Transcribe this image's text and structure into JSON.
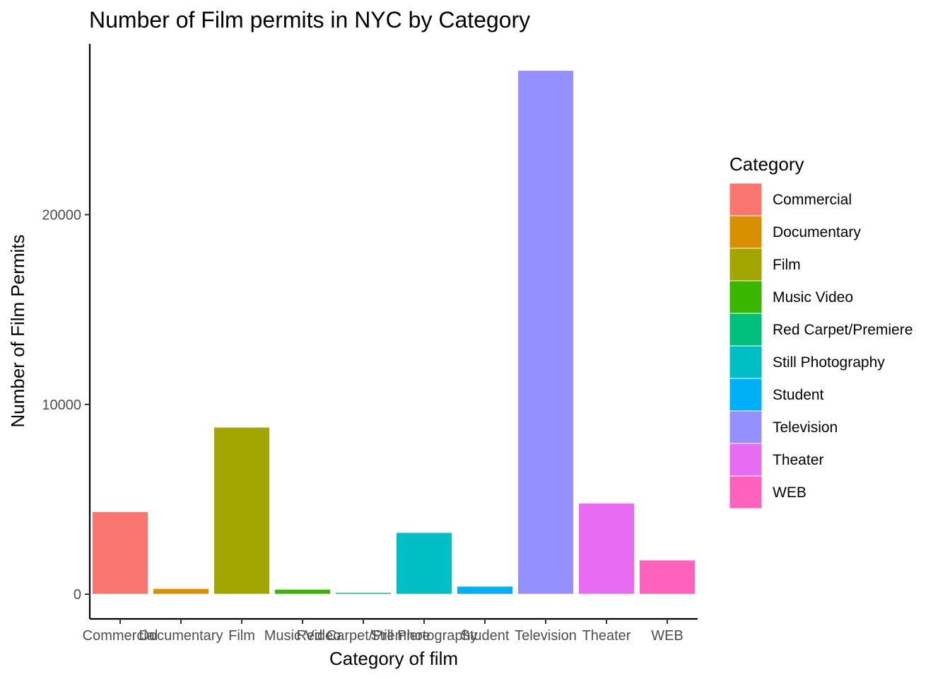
{
  "chart_data": {
    "type": "bar",
    "title": "Number of Film permits in NYC by Category",
    "xlabel": "Category of film",
    "ylabel": "Number of Film Permits",
    "categories": [
      "Commercial",
      "Documentary",
      "Film",
      "Music Video",
      "Red Carpet/Premiere",
      "Still Photography",
      "Student",
      "Television",
      "Theater",
      "WEB"
    ],
    "values": [
      4350,
      300,
      8800,
      260,
      90,
      3250,
      420,
      27600,
      4800,
      1800
    ],
    "colors": [
      "#F8766D",
      "#D89000",
      "#A3A500",
      "#39B600",
      "#00BF7D",
      "#00BFC4",
      "#00B0F6",
      "#9590FF",
      "#E76BF3",
      "#FF62BC"
    ],
    "y_ticks": [
      0,
      10000,
      20000
    ],
    "y_tick_labels": [
      "0",
      "10000",
      "20000"
    ],
    "ylim": [
      -1300,
      29000
    ],
    "grid": false,
    "legend": {
      "title": "Category",
      "position": "right",
      "entries": [
        "Commercial",
        "Documentary",
        "Film",
        "Music Video",
        "Red Carpet/Premiere",
        "Still Photography",
        "Student",
        "Television",
        "Theater",
        "WEB"
      ]
    }
  }
}
